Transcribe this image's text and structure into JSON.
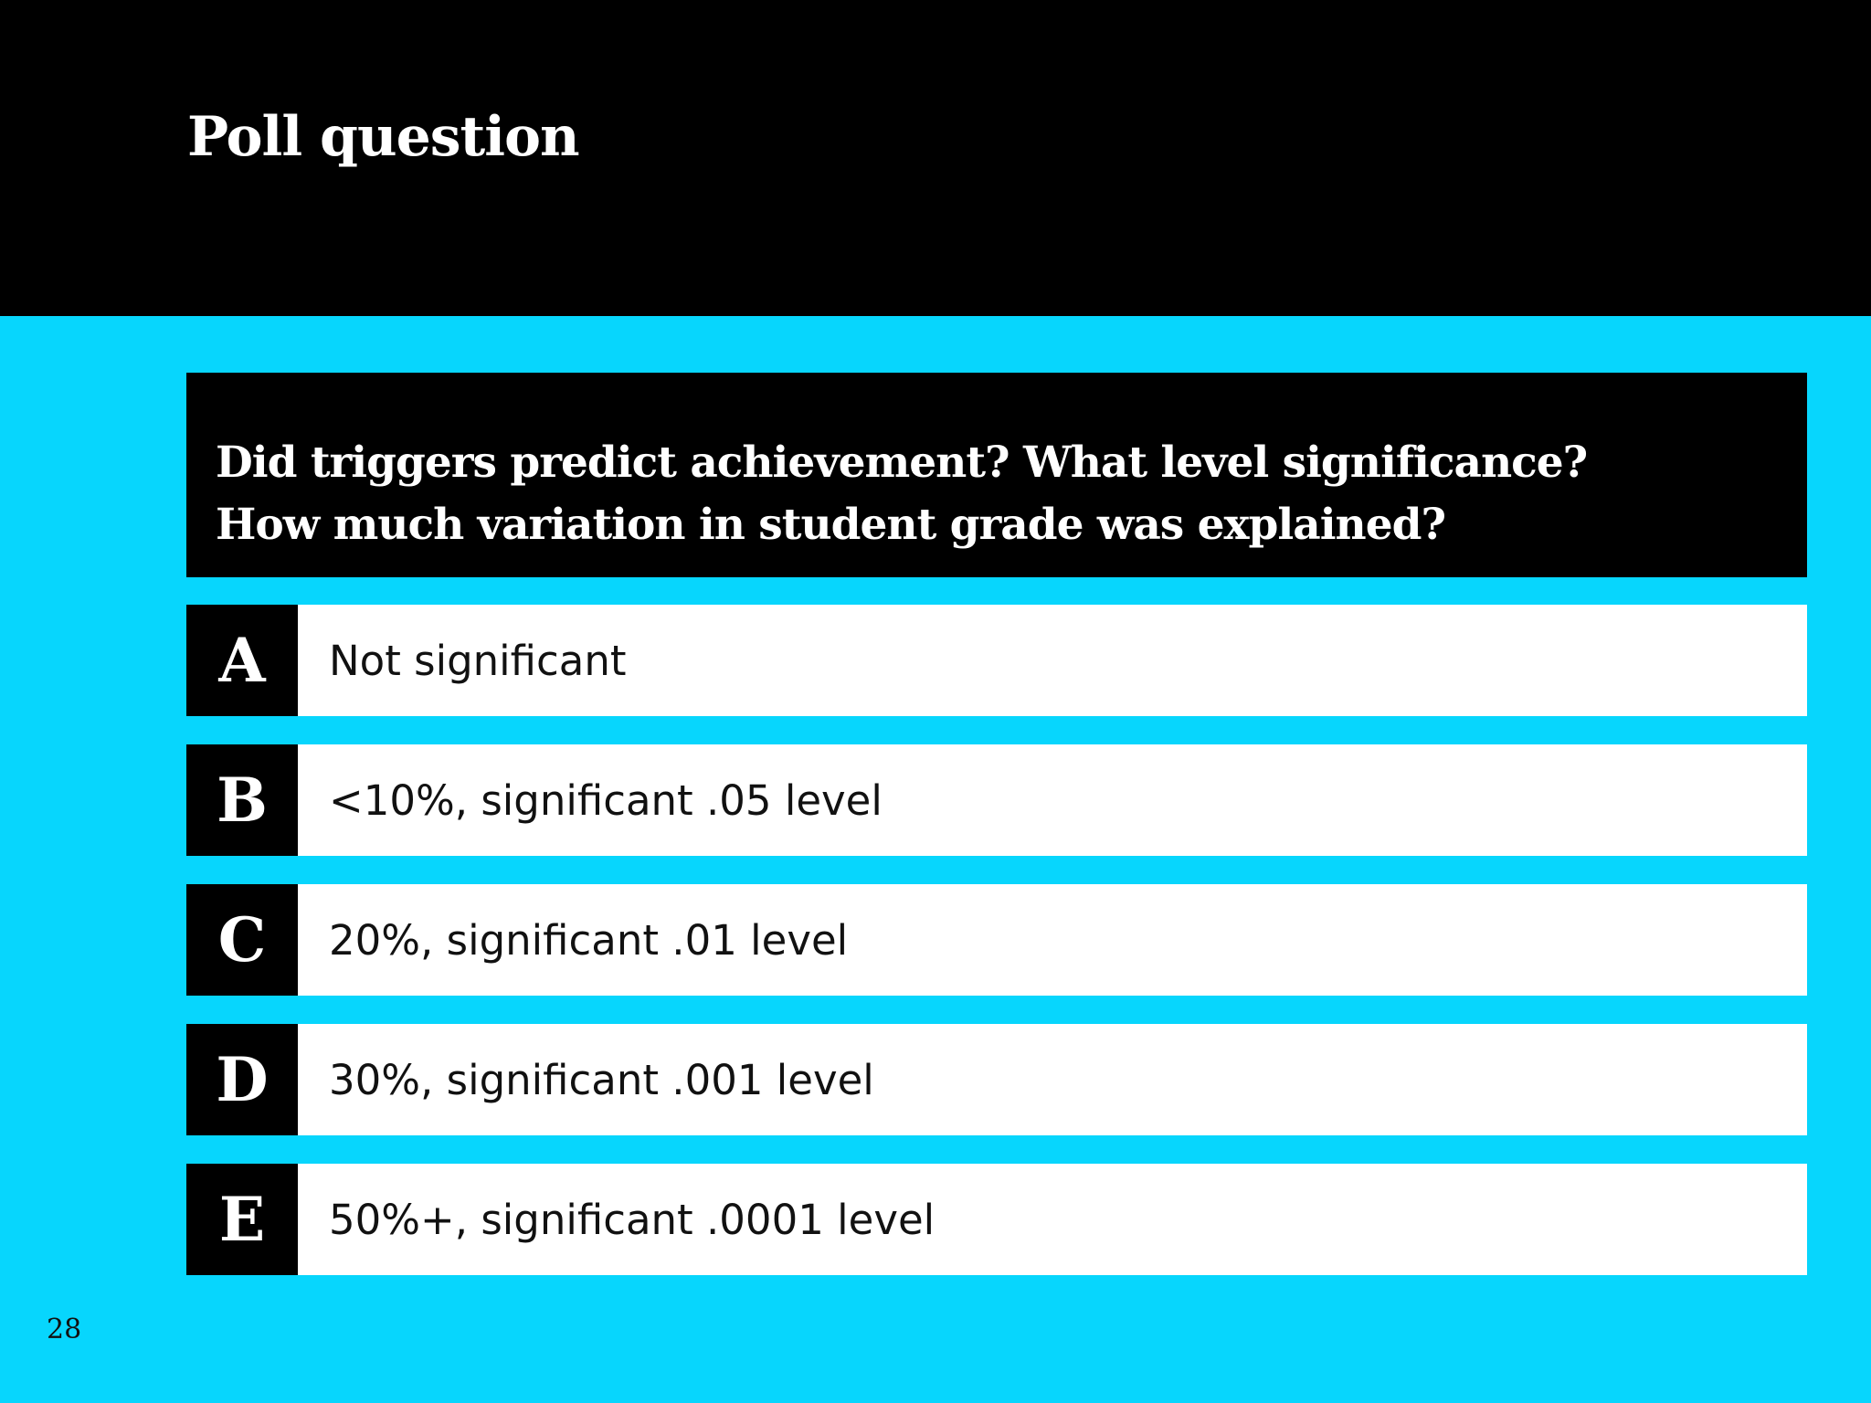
{
  "slide": {
    "title": "Poll question",
    "question_lines": [
      "Did triggers predict achievement? What level significance?",
      "How much variation in student grade was explained?"
    ],
    "options": [
      {
        "letter": "A",
        "text": "Not significant"
      },
      {
        "letter": "B",
        "text": "<10%, significant .05 level"
      },
      {
        "letter": "C",
        "text": "20%, significant .01 level"
      },
      {
        "letter": "D",
        "text": "30%, significant .001 level"
      },
      {
        "letter": "E",
        "text": "50%+, significant .0001 level"
      }
    ],
    "slide_number": "28"
  },
  "colors": {
    "background": "#07d6fd",
    "header": "#000000",
    "option_background": "#ffffff",
    "letter_badge": "#000000"
  }
}
